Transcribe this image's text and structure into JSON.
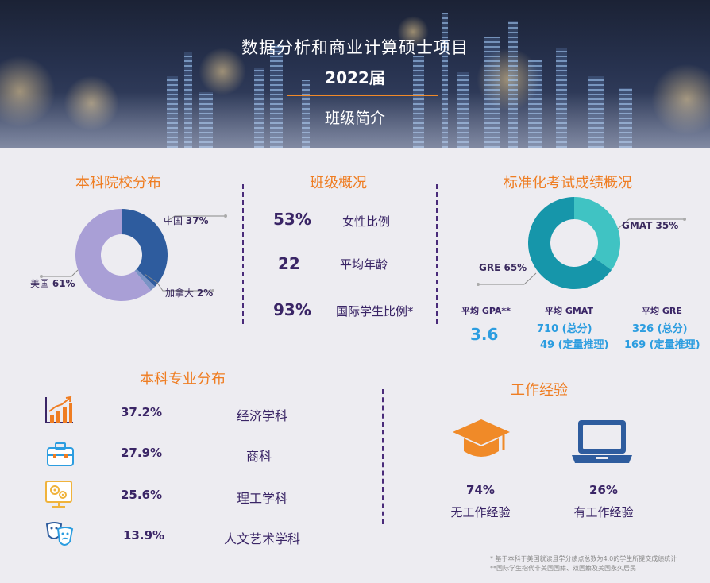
{
  "banner": {
    "title": "数据分析和商业计算硕士项目",
    "year": "2022届",
    "subtitle": "班级简介"
  },
  "colors": {
    "accent_orange": "#ef7d22",
    "dark_purple": "#3a2566",
    "donut_navy": "#2e5c9e",
    "donut_lavender": "#a99fd6",
    "donut_light": "#7a93c5",
    "teal_dark": "#1696aa",
    "teal_light": "#40c3c3",
    "blue_text": "#2c9de0"
  },
  "sections": {
    "schools_title": "本科院校分布",
    "overview_title": "班级概况",
    "tests_title": "标准化考试成绩概况",
    "majors_title": "本科专业分布",
    "work_title": "工作经验"
  },
  "chart_data": [
    {
      "type": "pie",
      "title": "本科院校分布",
      "labels": [
        "中国",
        "加拿大",
        "美国"
      ],
      "values": [
        37,
        2,
        61
      ],
      "value_labels": [
        "37%",
        "2%",
        "61%"
      ],
      "colors": [
        "#2e5c9e",
        "#7a93c5",
        "#a99fd6"
      ]
    },
    {
      "type": "pie",
      "title": "标准化考试成绩概况",
      "labels": [
        "GMAT",
        "GRE"
      ],
      "values": [
        35,
        65
      ],
      "value_labels": [
        "35%",
        "65%"
      ],
      "colors": [
        "#40c3c3",
        "#1696aa"
      ]
    }
  ],
  "overview": [
    {
      "value": "53%",
      "label": "女性比例"
    },
    {
      "value": "22",
      "label": "平均年龄"
    },
    {
      "value": "93%",
      "label": "国际学生比例*"
    }
  ],
  "scores": {
    "gpa_caption": "平均 GPA**",
    "gpa_value": "3.6",
    "gmat_caption": "平均 GMAT",
    "gmat_total": "710 (总分)",
    "gmat_quant": "49 (定量推理)",
    "gre_caption": "平均 GRE",
    "gre_total": "326 (总分)",
    "gre_quant": "169 (定量推理)"
  },
  "majors": [
    {
      "icon": "chart-growth-icon",
      "pct": "37.2%",
      "name": "经济学科"
    },
    {
      "icon": "briefcase-icon",
      "pct": "27.9%",
      "name": "商科"
    },
    {
      "icon": "gears-monitor-icon",
      "pct": "25.6%",
      "name": "理工学科"
    },
    {
      "icon": "theater-masks-icon",
      "pct": "13.9%",
      "name": "人文艺术学科"
    }
  ],
  "work": [
    {
      "icon": "graduation-cap-icon",
      "pct": "74%",
      "label": "无工作经验"
    },
    {
      "icon": "laptop-icon",
      "pct": "26%",
      "label": "有工作经验"
    }
  ],
  "footnotes": [
    "* 基于本科于美国就读且学分绩点总数为4.0的学生所提交成绩统计",
    "**国际学生指代非美国国籍、双国籍及美国永久居民"
  ]
}
